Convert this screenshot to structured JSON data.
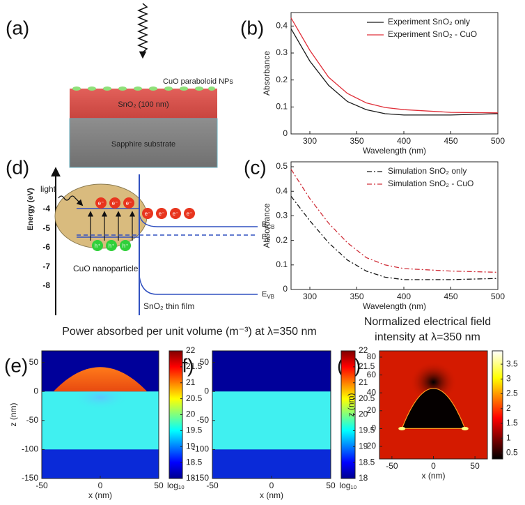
{
  "panel_labels": [
    "(a)",
    "(b)",
    "(c)",
    "(d)",
    "(e)",
    "(f)",
    "(g)"
  ],
  "diagram_a": {
    "nps": "CuO paraboloid NPs",
    "layer": "SnO₂ (100 nm)",
    "substrate": "Sapphire substrate"
  },
  "diagram_d": {
    "axis_label": "Energy (eV)",
    "ticks": [
      "-4",
      "-5",
      "-6",
      "-7",
      "-8"
    ],
    "light": "light",
    "electron": "e⁻",
    "hole": "h⁺",
    "particle": "CuO nanoparticle",
    "film": "SnO₂ thin film",
    "levels": [
      [
        "E",
        "CB"
      ],
      [
        "E",
        "F"
      ],
      [
        "E",
        "VB"
      ]
    ]
  },
  "figure_titles": {
    "left": "Power absorbed per unit volume (m⁻³) at λ=350 nm",
    "right": [
      "Normalized electrical field",
      "intensity at λ=350 nm"
    ]
  },
  "chart_data": [
    {
      "type": "line",
      "xlabel": "Wavelength (nm)",
      "ylabel": "Absorbance",
      "x": [
        280,
        300,
        320,
        340,
        360,
        380,
        400,
        450,
        500
      ],
      "xlim": [
        280,
        500
      ],
      "xticks": [
        300,
        350,
        400,
        450,
        500
      ],
      "ylim": [
        0,
        0.45
      ],
      "yticks": [
        0,
        0.1,
        0.2,
        0.3,
        0.4
      ],
      "linestyle": "solid",
      "legend": "upper right",
      "series": [
        {
          "name": "Experiment SnO₂ only",
          "color": "#1a1a1a",
          "values": [
            0.39,
            0.27,
            0.18,
            0.12,
            0.09,
            0.075,
            0.07,
            0.07,
            0.075
          ]
        },
        {
          "name": "Experiment SnO₂ - CuO",
          "color": "#e0303a",
          "values": [
            0.43,
            0.31,
            0.21,
            0.15,
            0.115,
            0.098,
            0.09,
            0.08,
            0.078
          ]
        }
      ]
    },
    {
      "type": "line",
      "xlabel": "Wavelength (nm)",
      "ylabel": "Absorbance",
      "x": [
        280,
        300,
        320,
        340,
        360,
        380,
        400,
        450,
        500
      ],
      "xlim": [
        280,
        500
      ],
      "xticks": [
        300,
        350,
        400,
        450,
        500
      ],
      "ylim": [
        0,
        0.52
      ],
      "yticks": [
        0,
        0.1,
        0.2,
        0.3,
        0.4,
        0.5
      ],
      "linestyle": "dashdot",
      "legend": "upper right",
      "series": [
        {
          "name": "Simulation SnO₂ only",
          "color": "#1a1a1a",
          "values": [
            0.38,
            0.28,
            0.19,
            0.12,
            0.075,
            0.05,
            0.04,
            0.04,
            0.045
          ]
        },
        {
          "name": "Simulation SnO₂ - CuO",
          "color": "#d0303a",
          "values": [
            0.49,
            0.37,
            0.27,
            0.19,
            0.13,
            0.1,
            0.085,
            0.075,
            0.07
          ]
        }
      ]
    },
    {
      "type": "heatmap",
      "xlabel": "x (nm)",
      "ylabel": "z (nm)",
      "colormap": "jet",
      "particle": true,
      "xlim": [
        -50,
        50
      ],
      "xticks": [
        -50,
        0,
        50
      ],
      "ylim": [
        -150,
        70
      ],
      "yticks": [
        -150,
        -100,
        -50,
        0,
        50
      ],
      "clim": [
        18,
        22
      ],
      "cticks": [
        18,
        18.5,
        19,
        19.5,
        20,
        20.5,
        21,
        21.5,
        22
      ],
      "clabel": "log₁₀"
    },
    {
      "type": "heatmap",
      "xlabel": "x (nm)",
      "colormap": "jet",
      "particle": false,
      "xlim": [
        -50,
        50
      ],
      "xticks": [
        -50,
        0,
        50
      ],
      "ylim": [
        -150,
        70
      ],
      "yticks": [
        -150,
        -100,
        -50,
        0,
        50
      ],
      "clim": [
        18,
        22
      ],
      "cticks": [
        18,
        18.5,
        19,
        19.5,
        20,
        20.5,
        21,
        21.5,
        22
      ],
      "clabel": "log₁₀"
    },
    {
      "type": "heatmap",
      "xlabel": "x (nm)",
      "ylabel": "z (nm)",
      "colormap": "hot",
      "particle": true,
      "xlim": [
        -65,
        65
      ],
      "xticks": [
        -50,
        0,
        50
      ],
      "ylim": [
        -34,
        87
      ],
      "yticks": [
        -20,
        0,
        20,
        40,
        60,
        80
      ],
      "clim": [
        0.3,
        3.95
      ],
      "cticks": [
        0.5,
        1,
        1.5,
        2,
        2.5,
        3,
        3.5
      ]
    }
  ]
}
